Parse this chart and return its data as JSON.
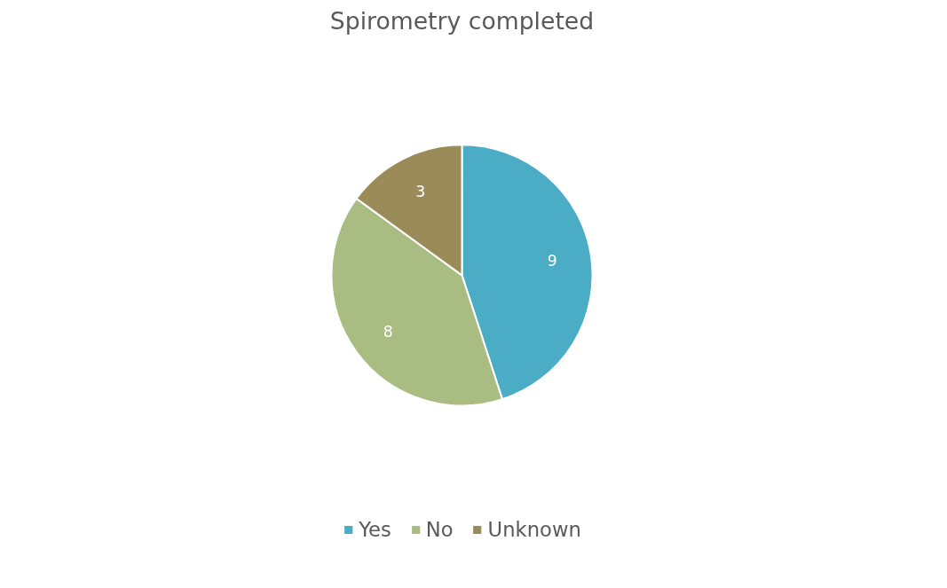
{
  "chart_data": {
    "type": "pie",
    "title": "Spirometry completed",
    "categories": [
      "Yes",
      "No",
      "Unknown"
    ],
    "values": [
      9,
      8,
      3
    ],
    "colors": [
      "#4bacc6",
      "#a9bc81",
      "#9a8b58"
    ],
    "data_labels": true,
    "legend": "bottom"
  }
}
